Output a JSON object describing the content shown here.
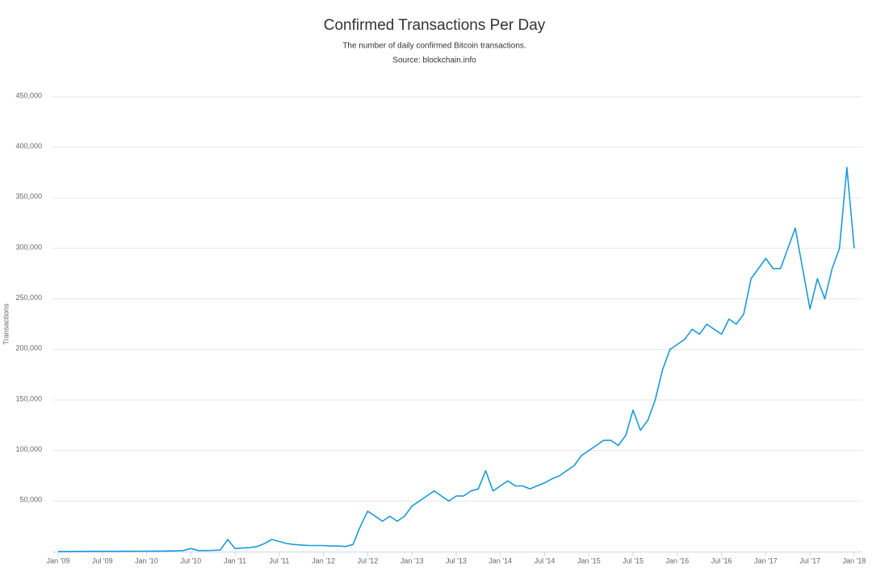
{
  "chart_data": {
    "type": "line",
    "title": "Confirmed Transactions Per Day",
    "subtitle": "The number of daily confirmed Bitcoin transactions.",
    "source": "Source: blockchain.info",
    "y_label": "Transactions",
    "x": [
      "2009-01",
      "2009-02",
      "2009-03",
      "2009-04",
      "2009-05",
      "2009-06",
      "2009-07",
      "2009-08",
      "2009-09",
      "2009-10",
      "2009-11",
      "2009-12",
      "2010-01",
      "2010-02",
      "2010-03",
      "2010-04",
      "2010-05",
      "2010-06",
      "2010-07",
      "2010-08",
      "2010-09",
      "2010-10",
      "2010-11",
      "2010-12",
      "2011-01",
      "2011-02",
      "2011-03",
      "2011-04",
      "2011-05",
      "2011-06",
      "2011-07",
      "2011-08",
      "2011-09",
      "2011-10",
      "2011-11",
      "2011-12",
      "2012-01",
      "2012-02",
      "2012-03",
      "2012-04",
      "2012-05",
      "2012-06",
      "2012-07",
      "2012-08",
      "2012-09",
      "2012-10",
      "2012-11",
      "2012-12",
      "2013-01",
      "2013-02",
      "2013-03",
      "2013-04",
      "2013-05",
      "2013-06",
      "2013-07",
      "2013-08",
      "2013-09",
      "2013-10",
      "2013-11",
      "2013-12",
      "2014-01",
      "2014-02",
      "2014-03",
      "2014-04",
      "2014-05",
      "2014-06",
      "2014-07",
      "2014-08",
      "2014-09",
      "2014-10",
      "2014-11",
      "2014-12",
      "2015-01",
      "2015-02",
      "2015-03",
      "2015-04",
      "2015-05",
      "2015-06",
      "2015-07",
      "2015-08",
      "2015-09",
      "2015-10",
      "2015-11",
      "2015-12",
      "2016-01",
      "2016-02",
      "2016-03",
      "2016-04",
      "2016-05",
      "2016-06",
      "2016-07",
      "2016-08",
      "2016-09",
      "2016-10",
      "2016-11",
      "2016-12",
      "2017-01",
      "2017-02",
      "2017-03",
      "2017-04",
      "2017-05",
      "2017-06",
      "2017-07",
      "2017-08",
      "2017-09",
      "2017-10",
      "2017-11",
      "2017-12",
      "2018-01"
    ],
    "series": [
      {
        "name": "Transactions",
        "color": "#1a9bd7",
        "values": [
          100,
          100,
          150,
          150,
          200,
          200,
          200,
          250,
          250,
          300,
          300,
          400,
          400,
          500,
          500,
          600,
          700,
          1000,
          3000,
          1000,
          1000,
          1200,
          1500,
          12000,
          3000,
          3500,
          4000,
          5000,
          8000,
          12000,
          10000,
          8000,
          7000,
          6500,
          6000,
          6000,
          6000,
          5500,
          5500,
          5000,
          7000,
          25000,
          40000,
          35000,
          30000,
          35000,
          30000,
          35000,
          45000,
          50000,
          55000,
          60000,
          55000,
          50000,
          55000,
          55000,
          60000,
          62000,
          80000,
          60000,
          65000,
          70000,
          65000,
          65000,
          62000,
          65000,
          68000,
          72000,
          75000,
          80000,
          85000,
          95000,
          100000,
          105000,
          110000,
          110000,
          105000,
          115000,
          140000,
          120000,
          130000,
          150000,
          180000,
          200000,
          205000,
          210000,
          220000,
          215000,
          225000,
          220000,
          215000,
          230000,
          225000,
          235000,
          270000,
          280000,
          290000,
          280000,
          280000,
          300000,
          320000,
          280000,
          240000,
          270000,
          250000,
          280000,
          300000,
          380000,
          300000
        ]
      }
    ],
    "xlim": [
      "2009-01",
      "2018-01"
    ],
    "xticks": [
      {
        "value": "2009-01",
        "label": "Jan '09"
      },
      {
        "value": "2009-07",
        "label": "Jul '09"
      },
      {
        "value": "2010-01",
        "label": "Jan '10"
      },
      {
        "value": "2010-07",
        "label": "Jul '10"
      },
      {
        "value": "2011-01",
        "label": "Jan '11"
      },
      {
        "value": "2011-07",
        "label": "Jul '11"
      },
      {
        "value": "2012-01",
        "label": "Jan '12"
      },
      {
        "value": "2012-07",
        "label": "Jul '12"
      },
      {
        "value": "2013-01",
        "label": "Jan '13"
      },
      {
        "value": "2013-07",
        "label": "Jul '13"
      },
      {
        "value": "2014-01",
        "label": "Jan '14"
      },
      {
        "value": "2014-07",
        "label": "Jul '14"
      },
      {
        "value": "2015-01",
        "label": "Jan '15"
      },
      {
        "value": "2015-07",
        "label": "Jul '15"
      },
      {
        "value": "2016-01",
        "label": "Jan '16"
      },
      {
        "value": "2016-07",
        "label": "Jul '16"
      },
      {
        "value": "2017-01",
        "label": "Jan '17"
      },
      {
        "value": "2017-07",
        "label": "Jul '17"
      },
      {
        "value": "2018-01",
        "label": "Jan '18"
      }
    ],
    "ylim": [
      0,
      450000
    ],
    "yticks": [
      {
        "value": 50000,
        "label": "50,000"
      },
      {
        "value": 100000,
        "label": "100,000"
      },
      {
        "value": 150000,
        "label": "150,000"
      },
      {
        "value": 200000,
        "label": "200,000"
      },
      {
        "value": 250000,
        "label": "250,000"
      },
      {
        "value": 300000,
        "label": "300,000"
      },
      {
        "value": 350000,
        "label": "350,000"
      },
      {
        "value": 400000,
        "label": "400,000"
      },
      {
        "value": 450000,
        "label": "450,000"
      }
    ],
    "grid": true
  }
}
